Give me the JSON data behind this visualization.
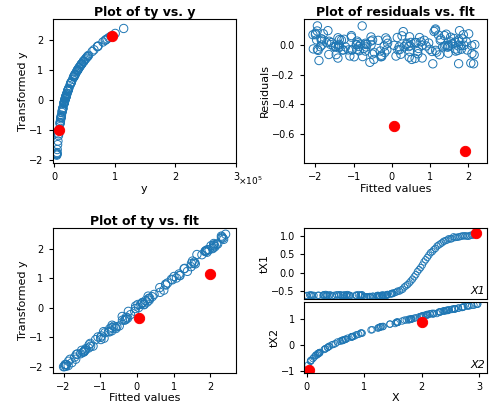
{
  "title_ul": "Plot of ty vs. y",
  "title_ur": "Plot of residuals vs. flt",
  "title_ll": "Plot of ty vs. flt",
  "xlabel_ul": "y",
  "ylabel_ul": "Transformed y",
  "xlabel_ur": "Fitted values",
  "ylabel_ur": "Residuals",
  "xlabel_ll": "Fitted values",
  "ylabel_ll": "Transformed y",
  "xlabel_lr": "X",
  "ylabel_lr1": "tX1",
  "ylabel_lr2": "tX2",
  "label_lr1": "X1",
  "label_lr2": "X2",
  "open_color": "#1F77B4",
  "fill_color": "#FF0000",
  "title_fontsize": 9,
  "label_fontsize": 8,
  "tick_fontsize": 7,
  "marker_size": 36,
  "outlier_size": 55,
  "linewidth": 0.7
}
